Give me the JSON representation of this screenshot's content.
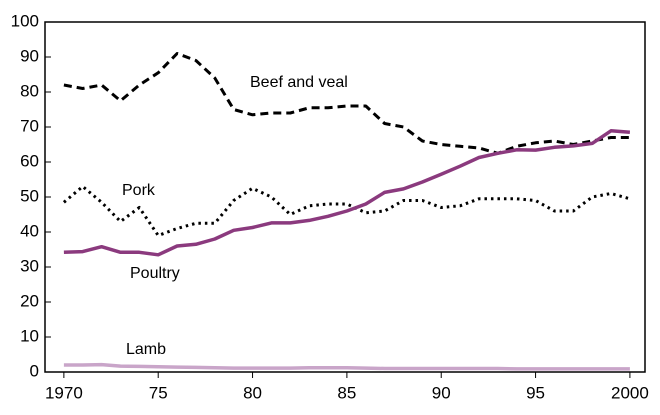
{
  "chart_data": {
    "type": "line",
    "x": [
      1970,
      1971,
      1972,
      1973,
      1974,
      1975,
      1976,
      1977,
      1978,
      1979,
      1980,
      1981,
      1982,
      1983,
      1984,
      1985,
      1986,
      1987,
      1988,
      1989,
      1990,
      1991,
      1992,
      1993,
      1994,
      1995,
      1996,
      1997,
      1998,
      1999,
      2000
    ],
    "series": [
      {
        "name": "Beef and veal",
        "color": "#000000",
        "dash": "dashed",
        "values": [
          82,
          81,
          82,
          77.5,
          82,
          85.5,
          91,
          89,
          84,
          75,
          73.5,
          74,
          74,
          75.5,
          75.5,
          76,
          76,
          71,
          70,
          66,
          65,
          64.5,
          64,
          62.5,
          64.5,
          65.5,
          66,
          65,
          66,
          67,
          67
        ]
      },
      {
        "name": "Pork",
        "color": "#000000",
        "dash": "dotted",
        "values": [
          48.5,
          53,
          48.5,
          43,
          47,
          39,
          41,
          42.5,
          42.5,
          49,
          52.5,
          50,
          45,
          47.5,
          48,
          48,
          45.5,
          46,
          49,
          49,
          47,
          47.5,
          49.5,
          49.5,
          49.5,
          49,
          46,
          46,
          50,
          51,
          49.5
        ]
      },
      {
        "name": "Poultry",
        "color": "#8b3a7e",
        "dash": "solid",
        "values": [
          34.2,
          34.4,
          35.8,
          34.2,
          34.2,
          33.5,
          36,
          36.5,
          38,
          40.5,
          41.3,
          42.6,
          42.6,
          43.3,
          44.5,
          46,
          48,
          51.3,
          52.3,
          54.3,
          56.5,
          58.8,
          61.3,
          62.5,
          63.5,
          63.4,
          64.2,
          64.6,
          65.3,
          68.9,
          68.5
        ]
      },
      {
        "name": "Lamb",
        "color": "#c9a5c9",
        "dash": "solid",
        "values": [
          2,
          2,
          2.1,
          1.7,
          1.6,
          1.5,
          1.4,
          1.3,
          1.2,
          1.1,
          1.1,
          1.1,
          1.1,
          1.2,
          1.2,
          1.2,
          1.1,
          1,
          1,
          1,
          1,
          1,
          1,
          1,
          0.9,
          0.9,
          0.9,
          0.9,
          0.9,
          0.9,
          0.9
        ]
      }
    ],
    "xlim": [
      1969,
      2000.8
    ],
    "xticks": [
      1970,
      {
        "value": 1975,
        "label": "75"
      },
      {
        "value": 1980,
        "label": "80"
      },
      {
        "value": 1985,
        "label": "85"
      },
      {
        "value": 1990,
        "label": "90"
      },
      {
        "value": 1995,
        "label": "95"
      },
      2000
    ],
    "ylim": [
      0,
      100
    ],
    "yticks": [
      0,
      10,
      20,
      30,
      40,
      50,
      60,
      70,
      80,
      90,
      100
    ],
    "grid": false
  }
}
